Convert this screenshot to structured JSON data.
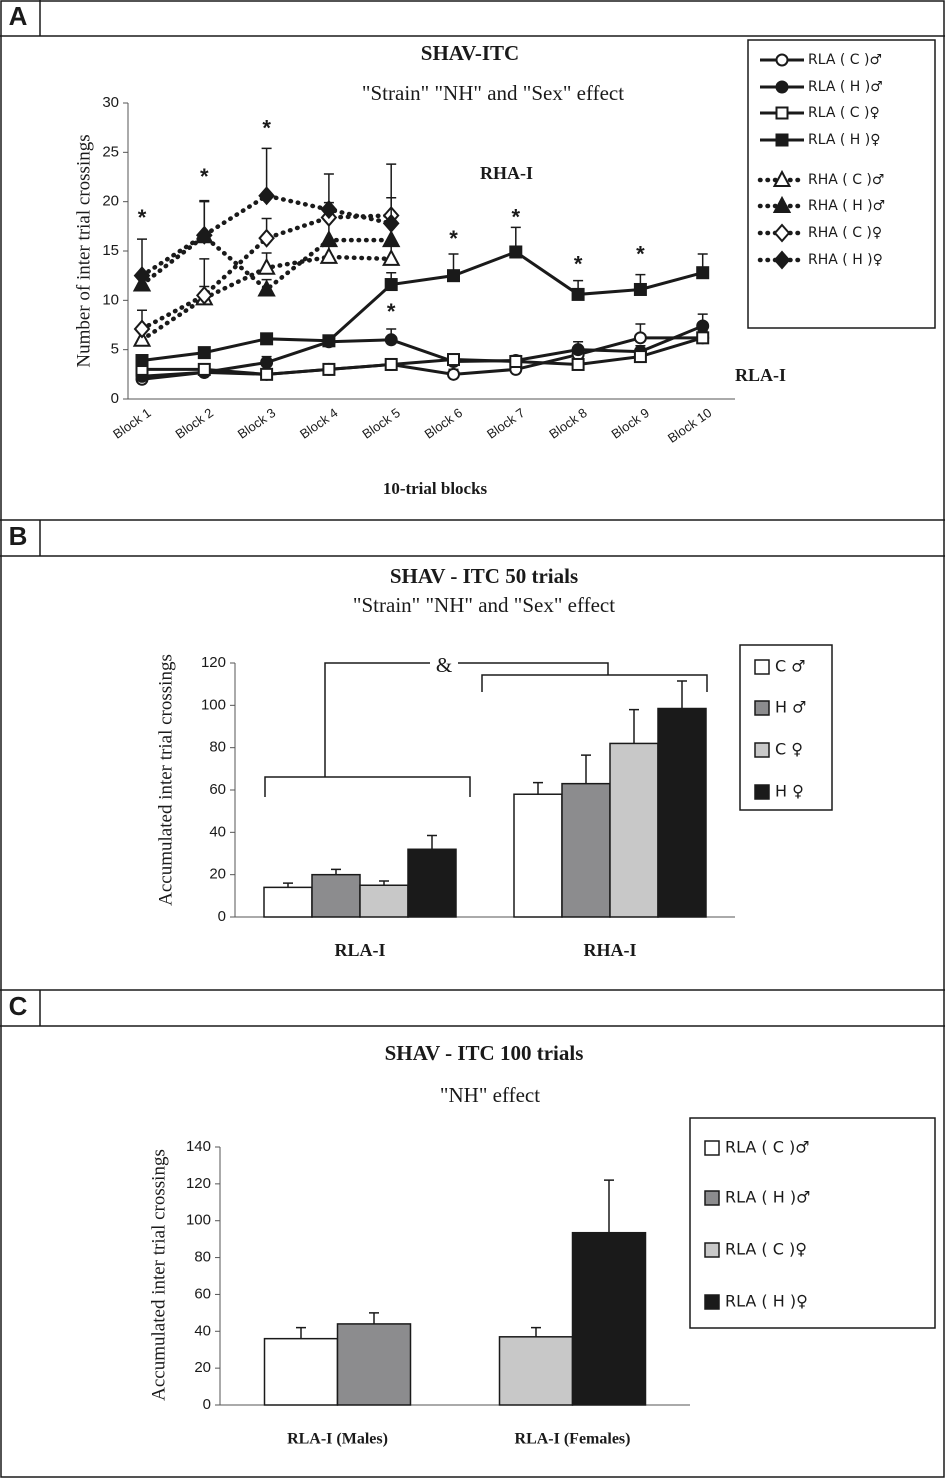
{
  "chart_data": [
    {
      "type": "line",
      "panel": "A",
      "title": "SHAV-ITC",
      "subtitle": "\"Strain\" \"NH\" and \"Sex\" effect",
      "ylabel": "Number of inter trial crossings",
      "xlabel": "10-trial blocks",
      "categories": [
        "Block 1",
        "Block 2",
        "Block 3",
        "Block 4",
        "Block 5",
        "Block 6",
        "Block 7",
        "Block 8",
        "Block 9",
        "Block 10"
      ],
      "ylim": [
        0,
        30
      ],
      "yticks": [
        0,
        5,
        10,
        15,
        20,
        25,
        30
      ],
      "series": [
        {
          "name": "RLA ( C )♂",
          "color": "#1a1a1a",
          "marker": "circle",
          "filled": false,
          "linestyle": "solid",
          "values": [
            2.0,
            2.7,
            2.5,
            3.0,
            3.5,
            2.5,
            3.0,
            4.5,
            6.2,
            6.2
          ],
          "errors": [
            0.3,
            0.4,
            0.4,
            0.5,
            0.5,
            0.5,
            0.4,
            0.6,
            1.4,
            0.8
          ]
        },
        {
          "name": "RLA ( H )♂",
          "color": "#1a1a1a",
          "marker": "circle",
          "filled": true,
          "linestyle": "solid",
          "values": [
            2.3,
            2.7,
            3.7,
            5.8,
            6.0,
            3.8,
            3.9,
            5.0,
            4.8,
            7.4
          ],
          "errors": [
            0.4,
            0.4,
            0.6,
            0.6,
            1.1,
            0.5,
            0.5,
            0.8,
            0.6,
            1.2
          ]
        },
        {
          "name": "RLA ( C )♀",
          "color": "#1a1a1a",
          "marker": "square",
          "filled": false,
          "linestyle": "solid",
          "values": [
            3.0,
            3.0,
            2.5,
            3.0,
            3.5,
            4.0,
            3.8,
            3.5,
            4.3,
            6.2
          ],
          "errors": [
            0.4,
            0.4,
            0.4,
            0.5,
            0.5,
            0.5,
            0.5,
            0.5,
            0.6,
            0.7
          ]
        },
        {
          "name": "RLA ( H )♀",
          "color": "#1a1a1a",
          "marker": "square",
          "filled": true,
          "linestyle": "solid",
          "values": [
            3.9,
            4.7,
            6.1,
            5.9,
            11.6,
            12.5,
            14.9,
            10.6,
            11.1,
            12.8
          ],
          "errors": [
            0.5,
            0.5,
            0.5,
            0.5,
            1.2,
            2.2,
            2.5,
            1.4,
            1.5,
            1.9
          ]
        },
        {
          "name": "RHA ( C )♂",
          "color": "#1a1a1a",
          "marker": "triangle",
          "filled": false,
          "linestyle": "dotted",
          "values": [
            6.0,
            10.2,
            13.3,
            14.4,
            14.2,
            null,
            null,
            null,
            null,
            null
          ],
          "errors": [
            1.0,
            1.2,
            1.5,
            1.3,
            1.4,
            null,
            null,
            null,
            null,
            null
          ]
        },
        {
          "name": "RHA ( H )♂",
          "color": "#1a1a1a",
          "marker": "triangle",
          "filled": true,
          "linestyle": "dotted",
          "values": [
            11.6,
            16.5,
            11.1,
            16.1,
            16.1,
            null,
            null,
            null,
            null,
            null
          ],
          "errors": [
            1.0,
            3.6,
            1.0,
            3.2,
            2.3,
            null,
            null,
            null,
            null,
            null
          ]
        },
        {
          "name": "RHA ( C )♀",
          "color": "#1a1a1a",
          "marker": "diamond",
          "filled": false,
          "linestyle": "dotted",
          "values": [
            7.1,
            10.5,
            16.3,
            18.4,
            18.6,
            null,
            null,
            null,
            null,
            null
          ],
          "errors": [
            1.9,
            3.7,
            2.0,
            1.5,
            1.8,
            null,
            null,
            null,
            null,
            null
          ]
        },
        {
          "name": "RHA ( H )♀",
          "color": "#1a1a1a",
          "marker": "diamond",
          "filled": true,
          "linestyle": "dotted",
          "values": [
            12.5,
            16.6,
            20.6,
            19.2,
            17.8,
            null,
            null,
            null,
            null,
            null
          ],
          "errors": [
            3.7,
            3.4,
            4.8,
            3.6,
            6.0,
            null,
            null,
            null,
            null,
            null
          ]
        }
      ],
      "annotations": [
        {
          "text": "*",
          "x": "Block 1",
          "y": 18.2
        },
        {
          "text": "*",
          "x": "Block 2",
          "y": 22.4
        },
        {
          "text": "*",
          "x": "Block 3",
          "y": 27.3
        },
        {
          "text": "*",
          "x": "Block 5",
          "y": 8.7
        },
        {
          "text": "*",
          "x": "Block 6",
          "y": 16.1
        },
        {
          "text": "*",
          "x": "Block 7",
          "y": 18.3
        },
        {
          "text": "*",
          "x": "Block 8",
          "y": 13.5
        },
        {
          "text": "*",
          "x": "Block 9",
          "y": 14.5
        }
      ],
      "labels": [
        "RHA-I",
        "RLA-I"
      ]
    },
    {
      "type": "bar",
      "panel": "B",
      "title": "SHAV - ITC 50 trials",
      "subtitle": "\"Strain\" \"NH\" and \"Sex\" effect",
      "ylabel": "Accumulated  inter trial crossings",
      "categories": [
        "RLA-I",
        "RHA-I"
      ],
      "ylim": [
        0,
        120
      ],
      "yticks": [
        0,
        20,
        40,
        60,
        80,
        100,
        120
      ],
      "series": [
        {
          "name": "C ♂",
          "color": "#ffffff",
          "values": [
            14,
            58
          ],
          "errors": [
            2,
            5.5
          ]
        },
        {
          "name": "H ♂",
          "color": "#8c8c8e",
          "values": [
            20,
            63
          ],
          "errors": [
            2.5,
            13.5
          ]
        },
        {
          "name": "C ♀",
          "color": "#c8c8c8",
          "values": [
            15,
            82
          ],
          "errors": [
            2,
            16
          ]
        },
        {
          "name": "H ♀",
          "color": "#1a1a1a",
          "values": [
            32,
            98.5
          ],
          "errors": [
            6.5,
            13
          ]
        }
      ],
      "annotation": "&"
    },
    {
      "type": "bar",
      "panel": "C",
      "title": "SHAV - ITC 100 trials",
      "subtitle": "\"NH\" effect",
      "ylabel": "Accumulated inter trial crossings",
      "categories": [
        "RLA-I  (Males)",
        "RLA-I  (Females)"
      ],
      "ylim": [
        0,
        140
      ],
      "yticks": [
        0,
        20,
        40,
        60,
        80,
        100,
        120,
        140
      ],
      "series": [
        {
          "name": "RLA ( C )♂",
          "color": "#ffffff",
          "values": [
            36,
            null
          ],
          "errors": [
            6,
            null
          ]
        },
        {
          "name": "RLA ( H )♂",
          "color": "#8c8c8e",
          "values": [
            44,
            null
          ],
          "errors": [
            6,
            null
          ]
        },
        {
          "name": "RLA ( C )♀",
          "color": "#c8c8c8",
          "values": [
            null,
            37
          ],
          "errors": [
            null,
            5
          ]
        },
        {
          "name": "RLA ( H )♀",
          "color": "#1a1a1a",
          "values": [
            null,
            93.5
          ],
          "errors": [
            null,
            28.5
          ]
        }
      ]
    }
  ]
}
